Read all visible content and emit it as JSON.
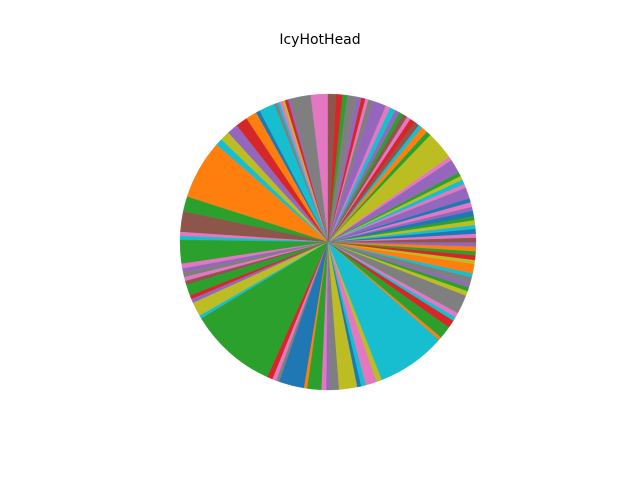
{
  "chart_data": {
    "type": "pie",
    "title": "IcyHotHead",
    "start_angle_deg": 90,
    "direction": "counterclockwise",
    "palette": [
      "#1f77b4",
      "#ff7f0e",
      "#2ca02c",
      "#d62728",
      "#9467bd",
      "#8c564b",
      "#e377c2",
      "#7f7f7f",
      "#bcbd22",
      "#17becf"
    ],
    "slices": [
      {
        "value": 2.2,
        "color": "#e377c2"
      },
      {
        "value": 2.6,
        "color": "#7f7f7f"
      },
      {
        "value": 0.3,
        "color": "#9467bd"
      },
      {
        "value": 0.4,
        "color": "#d62728"
      },
      {
        "value": 0.3,
        "color": "#bcbd22"
      },
      {
        "value": 0.4,
        "color": "#e377c2"
      },
      {
        "value": 0.3,
        "color": "#17becf"
      },
      {
        "value": 0.4,
        "color": "#7f7f7f"
      },
      {
        "value": 2.0,
        "color": "#17becf"
      },
      {
        "value": 0.5,
        "color": "#1f77b4"
      },
      {
        "value": 1.4,
        "color": "#ff7f0e"
      },
      {
        "value": 1.5,
        "color": "#d62728"
      },
      {
        "value": 1.4,
        "color": "#9467bd"
      },
      {
        "value": 1.2,
        "color": "#bcbd22"
      },
      {
        "value": 0.9,
        "color": "#17becf"
      },
      {
        "value": 7.5,
        "color": "#ff7f0e"
      },
      {
        "value": 1.9,
        "color": "#2ca02c"
      },
      {
        "value": 2.6,
        "color": "#8c564b"
      },
      {
        "value": 0.5,
        "color": "#e377c2"
      },
      {
        "value": 0.5,
        "color": "#17becf"
      },
      {
        "value": 3.0,
        "color": "#2ca02c"
      },
      {
        "value": 0.6,
        "color": "#e377c2"
      },
      {
        "value": 0.5,
        "color": "#9467bd"
      },
      {
        "value": 0.6,
        "color": "#7f7f7f"
      },
      {
        "value": 0.5,
        "color": "#e377c2"
      },
      {
        "value": 0.5,
        "color": "#8c564b"
      },
      {
        "value": 1.4,
        "color": "#2ca02c"
      },
      {
        "value": 0.5,
        "color": "#d62728"
      },
      {
        "value": 0.5,
        "color": "#9467bd"
      },
      {
        "value": 1.8,
        "color": "#bcbd22"
      },
      {
        "value": 0.4,
        "color": "#17becf"
      },
      {
        "value": 11.2,
        "color": "#2ca02c"
      },
      {
        "value": 0.7,
        "color": "#d62728"
      },
      {
        "value": 0.5,
        "color": "#e377c2"
      },
      {
        "value": 0.4,
        "color": "#7f7f7f"
      },
      {
        "value": 3.2,
        "color": "#1f77b4"
      },
      {
        "value": 0.4,
        "color": "#ff7f0e"
      },
      {
        "value": 1.8,
        "color": "#2ca02c"
      },
      {
        "value": 0.6,
        "color": "#e377c2"
      },
      {
        "value": 0.4,
        "color": "#9467bd"
      },
      {
        "value": 1.2,
        "color": "#7f7f7f"
      },
      {
        "value": 2.3,
        "color": "#bcbd22"
      },
      {
        "value": 0.5,
        "color": "#1f77b4"
      },
      {
        "value": 0.6,
        "color": "#17becf"
      },
      {
        "value": 1.4,
        "color": "#e377c2"
      },
      {
        "value": 0.7,
        "color": "#bcbd22"
      },
      {
        "value": 8.8,
        "color": "#17becf"
      },
      {
        "value": 0.4,
        "color": "#ff7f0e"
      },
      {
        "value": 1.6,
        "color": "#2ca02c"
      },
      {
        "value": 1.0,
        "color": "#d62728"
      },
      {
        "value": 0.5,
        "color": "#17becf"
      },
      {
        "value": 0.6,
        "color": "#e377c2"
      },
      {
        "value": 2.4,
        "color": "#7f7f7f"
      },
      {
        "value": 0.6,
        "color": "#bcbd22"
      },
      {
        "value": 0.5,
        "color": "#2ca02c"
      },
      {
        "value": 0.5,
        "color": "#9467bd"
      },
      {
        "value": 0.8,
        "color": "#7f7f7f"
      },
      {
        "value": 0.5,
        "color": "#17becf"
      },
      {
        "value": 1.2,
        "color": "#ff7f0e"
      },
      {
        "value": 0.5,
        "color": "#bcbd22"
      },
      {
        "value": 0.6,
        "color": "#d62728"
      },
      {
        "value": 0.5,
        "color": "#2ca02c"
      },
      {
        "value": 0.6,
        "color": "#ff7f0e"
      },
      {
        "value": 0.5,
        "color": "#9467bd"
      },
      {
        "value": 0.6,
        "color": "#8c564b"
      },
      {
        "value": 0.5,
        "color": "#e377c2"
      },
      {
        "value": 0.6,
        "color": "#1f77b4"
      },
      {
        "value": 0.5,
        "color": "#17becf"
      },
      {
        "value": 0.6,
        "color": "#bcbd22"
      },
      {
        "value": 0.5,
        "color": "#2ca02c"
      },
      {
        "value": 0.7,
        "color": "#1f77b4"
      },
      {
        "value": 0.5,
        "color": "#9467bd"
      },
      {
        "value": 0.6,
        "color": "#e377c2"
      },
      {
        "value": 0.5,
        "color": "#1f77b4"
      },
      {
        "value": 1.4,
        "color": "#9467bd"
      },
      {
        "value": 0.5,
        "color": "#e377c2"
      },
      {
        "value": 0.6,
        "color": "#17becf"
      },
      {
        "value": 0.5,
        "color": "#bcbd22"
      },
      {
        "value": 0.5,
        "color": "#2ca02c"
      },
      {
        "value": 1.8,
        "color": "#9467bd"
      },
      {
        "value": 0.5,
        "color": "#e377c2"
      },
      {
        "value": 3.6,
        "color": "#bcbd22"
      },
      {
        "value": 0.6,
        "color": "#2ca02c"
      },
      {
        "value": 0.8,
        "color": "#ff7f0e"
      },
      {
        "value": 0.5,
        "color": "#17becf"
      },
      {
        "value": 0.6,
        "color": "#8c564b"
      },
      {
        "value": 0.7,
        "color": "#d62728"
      },
      {
        "value": 0.5,
        "color": "#e377c2"
      },
      {
        "value": 0.6,
        "color": "#8c564b"
      },
      {
        "value": 0.5,
        "color": "#2ca02c"
      },
      {
        "value": 0.6,
        "color": "#9467bd"
      },
      {
        "value": 0.7,
        "color": "#17becf"
      },
      {
        "value": 0.6,
        "color": "#e377c2"
      },
      {
        "value": 1.7,
        "color": "#9467bd"
      },
      {
        "value": 0.6,
        "color": "#7f7f7f"
      },
      {
        "value": 0.4,
        "color": "#e377c2"
      },
      {
        "value": 0.5,
        "color": "#d62728"
      },
      {
        "value": 0.6,
        "color": "#9467bd"
      },
      {
        "value": 1.2,
        "color": "#7f7f7f"
      },
      {
        "value": 0.6,
        "color": "#2ca02c"
      },
      {
        "value": 0.8,
        "color": "#d62728"
      },
      {
        "value": 1.0,
        "color": "#8c564b"
      }
    ]
  }
}
